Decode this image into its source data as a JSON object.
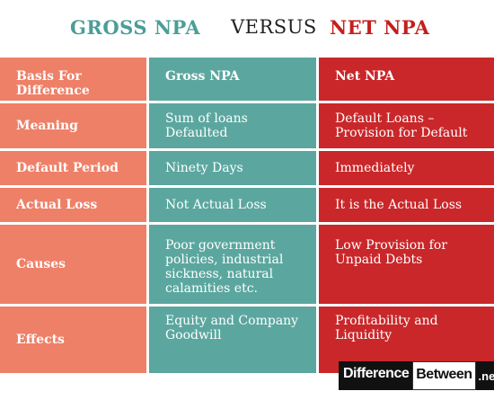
{
  "title": {
    "left": "GROSS NPA",
    "middle": "VERSUS",
    "right": "NET NPA"
  },
  "table": {
    "header": [
      "Basis For Difference",
      "Gross NPA",
      "Net NPA"
    ],
    "rows": [
      [
        "Meaning",
        "Sum of loans Defaulted",
        "Default Loans – Provision for Default"
      ],
      [
        "Default Period",
        "Ninety Days",
        "Immediately"
      ],
      [
        "Actual Loss",
        "Not Actual Loss",
        "It is the Actual Loss"
      ],
      [
        "Causes",
        "Poor government policies, industrial sickness, natural calamities etc.",
        "Low Provision for Unpaid Debts"
      ],
      [
        "Effects",
        "Equity and Company Goodwill",
        "Profitability and Liquidity"
      ]
    ]
  },
  "watermark": {
    "part1": "Difference",
    "part2": "Between",
    "part3": ".net"
  },
  "colors": {
    "basis_column": "#ee8068",
    "gross_column": "#5ba79f",
    "net_column": "#c9272a",
    "gross_title": "#4a9e97",
    "net_title": "#c41e1e"
  }
}
